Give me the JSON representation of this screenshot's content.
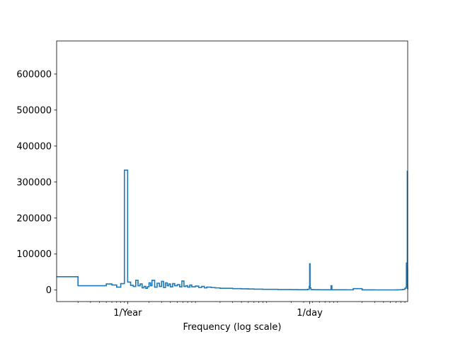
{
  "chart_data": {
    "type": "line",
    "title": "",
    "xlabel": "Frequency (log scale)",
    "ylabel": "",
    "x_scale": "log",
    "x_unit": "cycles per year",
    "xlim": [
      0.1,
      8760
    ],
    "ylim": [
      -32000,
      692000
    ],
    "grid": false,
    "legend": "none",
    "line_color": "#1f77b4",
    "x_ticks": [
      {
        "value": 1,
        "label": "1/Year"
      },
      {
        "value": 365.2524,
        "label": "1/day"
      }
    ],
    "y_ticks": [
      {
        "value": 0,
        "label": "0"
      },
      {
        "value": 100000,
        "label": "100000"
      },
      {
        "value": 200000,
        "label": "200000"
      },
      {
        "value": 300000,
        "label": "300000"
      },
      {
        "value": 400000,
        "label": "400000"
      },
      {
        "value": 500000,
        "label": "500000"
      },
      {
        "value": 600000,
        "label": "600000"
      }
    ],
    "series": [
      {
        "step": true,
        "x": [
          0.1,
          0.2,
          0.3,
          0.4,
          0.5,
          0.6,
          0.7,
          0.8,
          0.9,
          1.0,
          1.1,
          1.2,
          1.3,
          1.4,
          1.5,
          1.6,
          1.7,
          1.8,
          1.9,
          2.0,
          2.1,
          2.2,
          2.4,
          2.6,
          2.8,
          3.0,
          3.2,
          3.4,
          3.6,
          3.8,
          4.0,
          4.3,
          4.6,
          5.0,
          5.4,
          5.8,
          6.2,
          6.6,
          7.0,
          7.5,
          8.0,
          9.0,
          10,
          11,
          12,
          13,
          15,
          17,
          20,
          25,
          30,
          40,
          50,
          60,
          80,
          100,
          130,
          160,
          200,
          250,
          300,
          340,
          360,
          365,
          370,
          380,
          400,
          450,
          500,
          600,
          700,
          730,
          750,
          800,
          900,
          1000,
          1200,
          1500,
          2000,
          2500,
          3000,
          3500,
          4000,
          4500,
          5000,
          5500,
          6000,
          6500,
          7000,
          7500,
          8000,
          8300,
          8400,
          8500,
          8600,
          8650,
          8700,
          8720,
          8740,
          8760
        ],
        "y": [
          37000,
          12000,
          12000,
          12000,
          17000,
          14000,
          8000,
          18000,
          333000,
          22000,
          13000,
          10000,
          27000,
          12000,
          17000,
          6000,
          10000,
          5000,
          9000,
          20000,
          12000,
          27000,
          8000,
          19000,
          10000,
          24000,
          7000,
          20000,
          12000,
          17000,
          9000,
          18000,
          12000,
          15000,
          9000,
          25000,
          10000,
          12000,
          8000,
          14000,
          9000,
          11000,
          7000,
          10000,
          6000,
          8000,
          7000,
          6000,
          5000,
          5000,
          4000,
          3500,
          3000,
          2500,
          2000,
          2000,
          1500,
          1500,
          1200,
          1000,
          1000,
          2000,
          10000,
          73000,
          6000,
          1500,
          1000,
          1000,
          800,
          800,
          800,
          12000,
          800,
          700,
          700,
          700,
          600,
          4000,
          500,
          500,
          400,
          400,
          400,
          400,
          400,
          400,
          500,
          600,
          1000,
          2000,
          5000,
          8000,
          75000,
          15000,
          40000,
          330000,
          60000,
          12000,
          4000,
          2000
        ]
      }
    ]
  }
}
